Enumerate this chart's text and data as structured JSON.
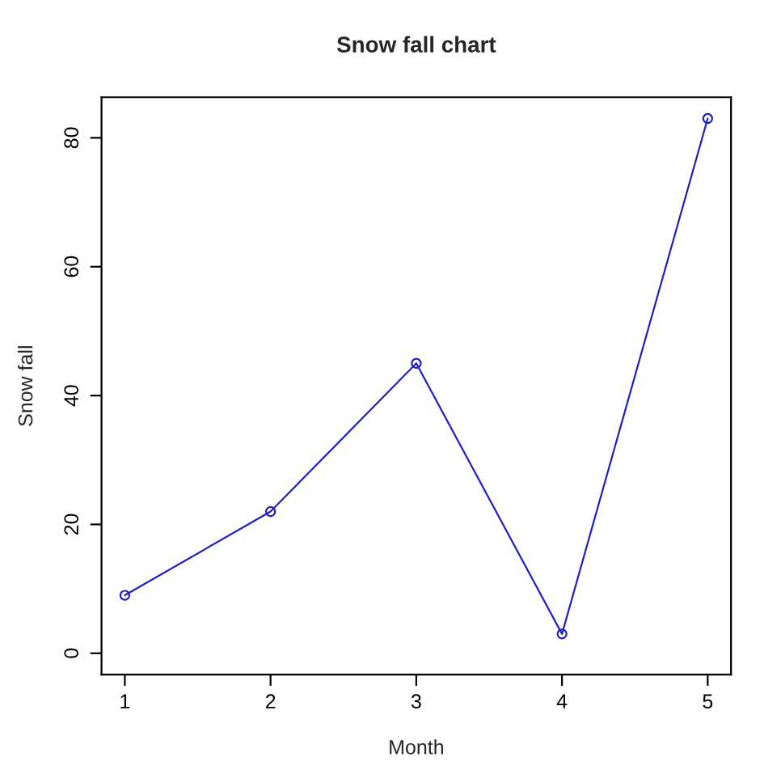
{
  "chart_data": {
    "type": "line",
    "title": "Snow fall chart",
    "xlabel": "Month",
    "ylabel": "Snow fall",
    "x": [
      1,
      2,
      3,
      4,
      5
    ],
    "series": [
      {
        "color": "#2020c0",
        "values": [
          9,
          22,
          45,
          3,
          83
        ]
      }
    ],
    "xlim": [
      0.84,
      5.16
    ],
    "ylim": [
      -3.3,
      86.3
    ],
    "xticks": [
      1,
      2,
      3,
      4,
      5
    ],
    "yticks": [
      0,
      20,
      40,
      60,
      80
    ],
    "marker": "circle",
    "line_style": "solid",
    "grid": false,
    "legend": false
  }
}
